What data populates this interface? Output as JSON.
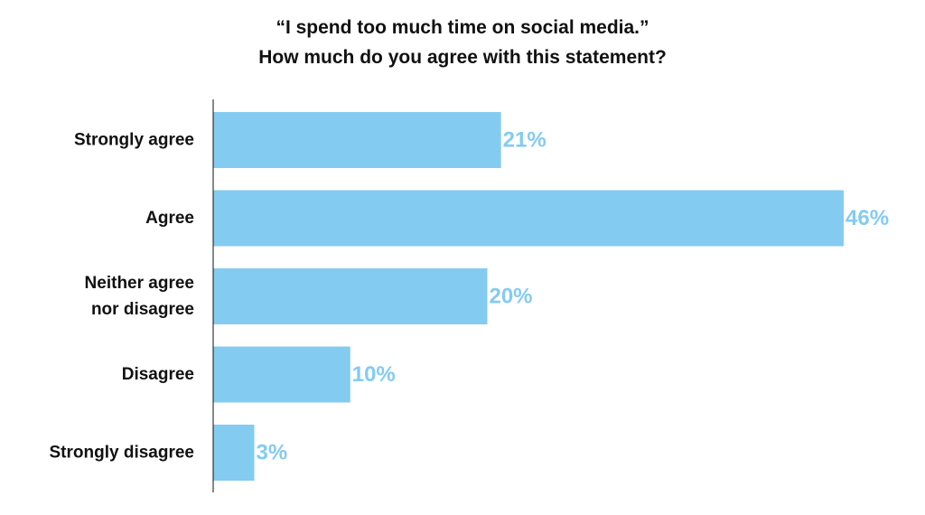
{
  "chart_data": {
    "type": "bar",
    "orientation": "horizontal",
    "title": "“I spend too much time on social media.”",
    "subtitle": "How much do you agree with this statement?",
    "categories": [
      [
        "Strongly agree"
      ],
      [
        "Agree"
      ],
      [
        "Neither agree",
        "nor disagree"
      ],
      [
        "Disagree"
      ],
      [
        "Strongly disagree"
      ]
    ],
    "values": [
      21,
      46,
      20,
      10,
      3
    ],
    "value_labels": [
      "21%",
      "46%",
      "20%",
      "10%",
      "3%"
    ],
    "unit": "%",
    "xlim": [
      0,
      46
    ],
    "grid": false,
    "legend": "none",
    "colors": {
      "bar": "#84cbf1",
      "value_label": "#84cbf1",
      "text": "#111111",
      "axis": "#111111"
    }
  }
}
